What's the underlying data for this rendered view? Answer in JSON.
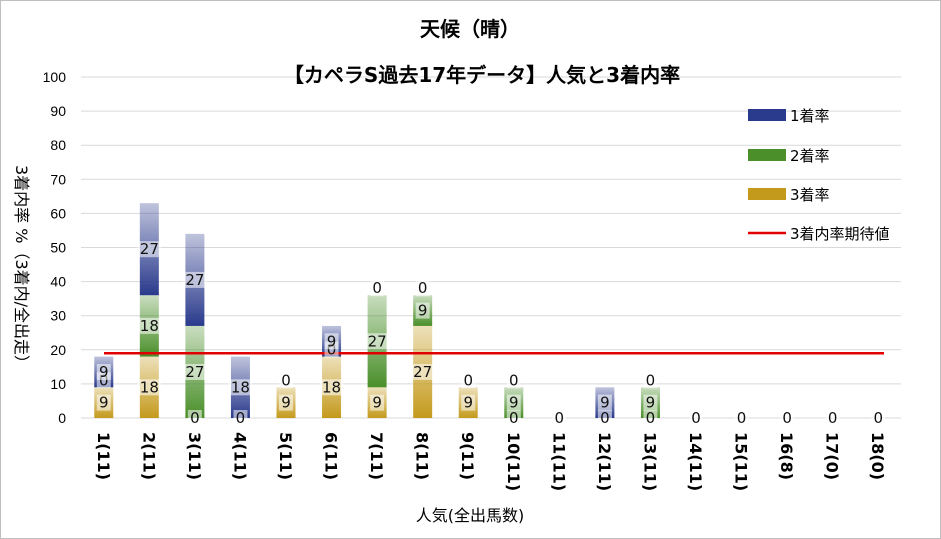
{
  "chart_data": {
    "type": "bar",
    "stacked": true,
    "title": "天候（晴）",
    "subtitle": "【カペラS過去17年データ】人気と3着内率",
    "xlabel": "人気(全出馬数)",
    "ylabel": "3着内率 %（3着内/全出走）",
    "ylim": [
      0,
      100
    ],
    "yticks": [
      "0",
      "10",
      "20",
      "30",
      "40",
      "50",
      "60",
      "70",
      "80",
      "90",
      "100"
    ],
    "grid": true,
    "legend_position": "right",
    "categories": [
      "1(11)",
      "2(11)",
      "3(11)",
      "4(11)",
      "5(11)",
      "6(11)",
      "7(11)",
      "8(11)",
      "9(11)",
      "10(11)",
      "11(11)",
      "12(11)",
      "13(11)",
      "14(11)",
      "15(11)",
      "16(8)",
      "17(0)",
      "18(0)"
    ],
    "series": [
      {
        "name": "3着率",
        "color": "#c49a1c",
        "values": [
          9,
          18,
          0,
          0,
          9,
          18,
          9,
          27,
          9,
          0,
          0,
          0,
          0,
          0,
          0,
          0,
          0,
          0
        ]
      },
      {
        "name": "2着率",
        "color": "#4a8f2a",
        "values": [
          0,
          18,
          27,
          0,
          0,
          0,
          27,
          9,
          0,
          9,
          0,
          0,
          9,
          0,
          0,
          0,
          0,
          0
        ]
      },
      {
        "name": "1着率",
        "color": "#2a3a8c",
        "values": [
          9,
          27,
          27,
          18,
          0,
          9,
          0,
          0,
          0,
          0,
          0,
          9,
          0,
          0,
          0,
          0,
          0,
          0
        ]
      }
    ],
    "data_labels": [
      {
        "c": 0,
        "series": 0,
        "text": "9"
      },
      {
        "c": 0,
        "series": 1,
        "text": "0"
      },
      {
        "c": 0,
        "series": 2,
        "text": "9"
      },
      {
        "c": 1,
        "series": 0,
        "text": "18"
      },
      {
        "c": 1,
        "series": 1,
        "text": "18"
      },
      {
        "c": 1,
        "series": 2,
        "text": "27"
      },
      {
        "c": 2,
        "series": 0,
        "text": "0"
      },
      {
        "c": 2,
        "series": 1,
        "text": "27"
      },
      {
        "c": 2,
        "series": 2,
        "text": "27"
      },
      {
        "c": 3,
        "series": 0,
        "text": "0"
      },
      {
        "c": 3,
        "series": 2,
        "text": "18"
      },
      {
        "c": 4,
        "series": 0,
        "text": "9"
      },
      {
        "c": 4,
        "series": 1,
        "text": "0"
      },
      {
        "c": 5,
        "series": 0,
        "text": "18"
      },
      {
        "c": 5,
        "series": 1,
        "text": "0"
      },
      {
        "c": 5,
        "series": 2,
        "text": "9"
      },
      {
        "c": 6,
        "series": 0,
        "text": "9"
      },
      {
        "c": 6,
        "series": 1,
        "text": "27"
      },
      {
        "c": 6,
        "series": 2,
        "text": "0"
      },
      {
        "c": 7,
        "series": 0,
        "text": "27"
      },
      {
        "c": 7,
        "series": 1,
        "text": "9"
      },
      {
        "c": 7,
        "series": 2,
        "text": "0"
      },
      {
        "c": 8,
        "series": 0,
        "text": "9"
      },
      {
        "c": 8,
        "series": 1,
        "text": "0"
      },
      {
        "c": 9,
        "series": 0,
        "text": "0"
      },
      {
        "c": 9,
        "series": 1,
        "text": "9"
      },
      {
        "c": 9,
        "series": 2,
        "text": "0"
      },
      {
        "c": 10,
        "series": 0,
        "text": "0"
      },
      {
        "c": 11,
        "series": 0,
        "text": "0"
      },
      {
        "c": 11,
        "series": 2,
        "text": "9"
      },
      {
        "c": 12,
        "series": 0,
        "text": "0"
      },
      {
        "c": 12,
        "series": 1,
        "text": "9"
      },
      {
        "c": 12,
        "series": 2,
        "text": "0"
      },
      {
        "c": 13,
        "series": 0,
        "text": "0"
      },
      {
        "c": 14,
        "series": 0,
        "text": "0"
      },
      {
        "c": 15,
        "series": 0,
        "text": "0"
      },
      {
        "c": 16,
        "series": 0,
        "text": "0"
      },
      {
        "c": 17,
        "series": 0,
        "text": "0"
      }
    ],
    "reference_line": {
      "name": "3着内率期待値",
      "value": 19,
      "color": "#e00000"
    },
    "legend": [
      {
        "label": "1着率",
        "color": "#2a3a8c"
      },
      {
        "label": "2着率",
        "color": "#4a8f2a"
      },
      {
        "label": "3着率",
        "color": "#c49a1c"
      },
      {
        "label": "3着内率期待値",
        "color": "#e00000"
      }
    ]
  }
}
